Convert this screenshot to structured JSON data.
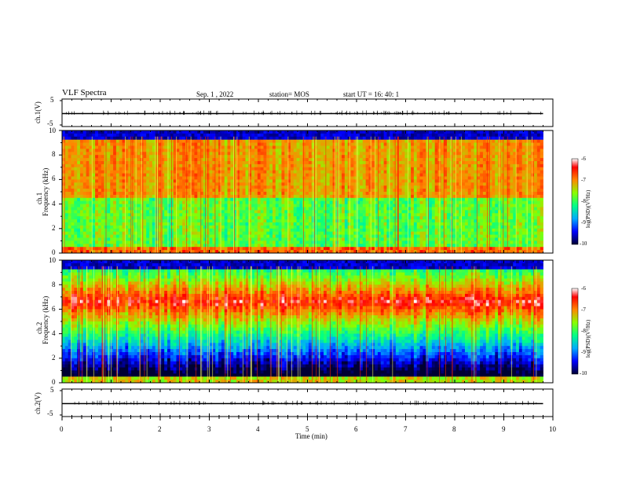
{
  "header": {
    "title": "VLF Spectra",
    "date": "Sep. 1 , 2022",
    "station": "station= MOS",
    "start": "start  UT =   16: 40: 1"
  },
  "chart_data": [
    {
      "type": "line",
      "id": "ch1",
      "ylabel": "ch.1(V)",
      "ylim": [
        -5,
        5
      ],
      "yticks": [
        "5",
        "-5"
      ],
      "description": "waveform trace near 0 V",
      "series": [
        {
          "values": [
            0,
            0
          ]
        }
      ],
      "x": [
        0,
        9.8
      ],
      "xlim": [
        0,
        10
      ]
    },
    {
      "type": "heatmap",
      "id": "spec1",
      "ylabel_top": "ch.1",
      "ylabel": "Frequency (kHz)",
      "ylim": [
        0,
        10
      ],
      "yticks": [
        "0",
        "2",
        "4",
        "6",
        "8",
        "10"
      ],
      "xlim": [
        0,
        10
      ],
      "data_x_end": 9.8,
      "colorbar": {
        "label": "log(PSD)(V²/Hz)",
        "range": [
          -10,
          -6
        ],
        "ticks": [
          "-6",
          "-7",
          "-8",
          "-9",
          "-10"
        ]
      }
    },
    {
      "type": "heatmap",
      "id": "spec2",
      "ylabel_top": "ch.2",
      "ylabel": "Frequency (kHz)",
      "ylim": [
        0,
        10
      ],
      "yticks": [
        "0",
        "2",
        "4",
        "6",
        "8",
        "10"
      ],
      "xlim": [
        0,
        10
      ],
      "data_x_end": 9.8,
      "colorbar": {
        "label": "log(PSD)(V²/Hz)",
        "range": [
          -10,
          -6
        ],
        "ticks": [
          "-6",
          "-7",
          "-8",
          "-9",
          "-10"
        ]
      }
    },
    {
      "type": "line",
      "id": "ch2",
      "ylabel": "ch.2(V)",
      "ylim": [
        -5,
        5
      ],
      "yticks": [
        "5",
        "-5"
      ],
      "series": [
        {
          "values": [
            0,
            0
          ]
        }
      ],
      "x": [
        0,
        9.8
      ],
      "xlim": [
        0,
        10
      ]
    }
  ],
  "xaxis": {
    "label": "Time  (min)",
    "ticks": [
      "0",
      "1",
      "2",
      "3",
      "4",
      "5",
      "6",
      "7",
      "8",
      "9",
      "10"
    ]
  }
}
